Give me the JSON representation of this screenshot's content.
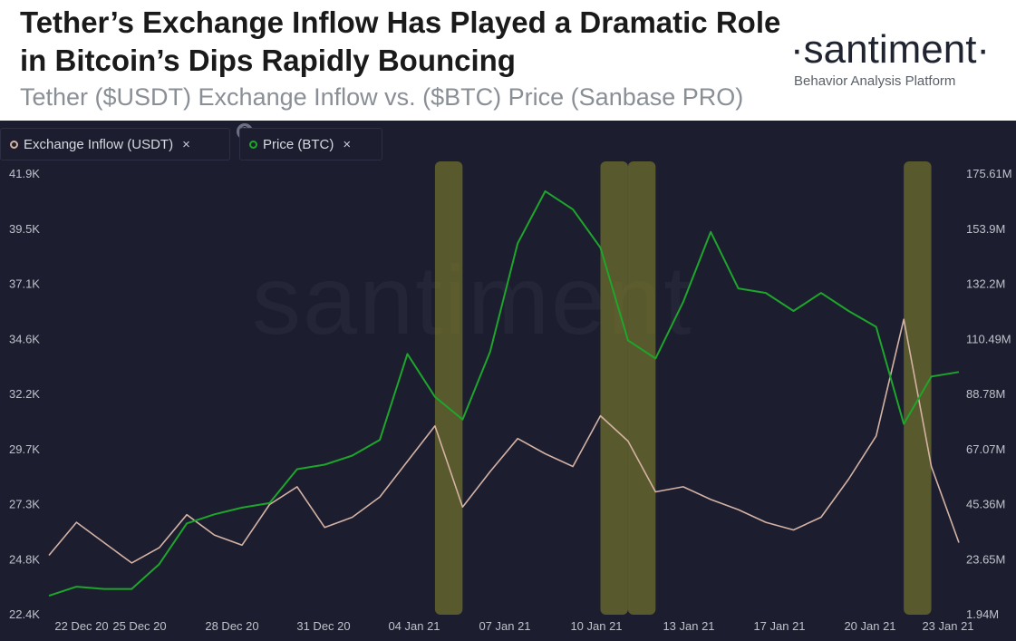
{
  "header": {
    "title": "Tether’s Exchange Inflow Has Played a Dramatic Role in Bitcoin’s Dips Rapidly Bouncing",
    "subtitle": "Tether ($USDT) Exchange Inflow vs. ($BTC) Price (Sanbase PRO)",
    "brand_name": "·santiment·",
    "brand_tagline": "Behavior Analysis Platform"
  },
  "legend": [
    {
      "label": "Exchange Inflow (USDT)",
      "close": "×",
      "color": "#d4b2a4"
    },
    {
      "label": "Price (BTC)",
      "close": "×",
      "color": "#1ea52b"
    }
  ],
  "watermark": "santiment",
  "colors": {
    "background": "#1c1e2f",
    "inflow": "#d4b2a4",
    "price": "#1ea52b",
    "highlight": "#8a8a2a",
    "axis_text": "#bfc2cc"
  },
  "chart_data": {
    "type": "line",
    "left_axis": {
      "series": "Price (BTC)",
      "ticks": [
        "41.9K",
        "39.5K",
        "37.1K",
        "34.6K",
        "32.2K",
        "29.7K",
        "27.3K",
        "24.8K",
        "22.4K"
      ],
      "range": [
        22400,
        41900
      ]
    },
    "right_axis": {
      "series": "Exchange Inflow (USDT)",
      "ticks": [
        "175.61M",
        "153.9M",
        "132.2M",
        "110.49M",
        "88.78M",
        "67.07M",
        "45.36M",
        "23.65M",
        "1.94M"
      ],
      "range": [
        1.94,
        175.61
      ]
    },
    "x_axis": {
      "ticks": [
        "22 Dec 20",
        "25 Dec 20",
        "28 Dec 20",
        "31 Dec 20",
        "04 Jan 21",
        "07 Jan 21",
        "10 Jan 21",
        "13 Jan 21",
        "17 Jan 21",
        "20 Jan 21",
        "23 Jan 21"
      ]
    },
    "highlight_bands": [
      {
        "start": "2021-01-04",
        "end": "2021-01-05"
      },
      {
        "start": "2021-01-10",
        "end": "2021-01-11"
      },
      {
        "start": "2021-01-11",
        "end": "2021-01-12"
      },
      {
        "start": "2021-01-21",
        "end": "2021-01-22"
      }
    ],
    "series": [
      {
        "name": "Price (BTC)",
        "axis": "left",
        "color": "#1ea52b",
        "points": [
          [
            "2020-12-21",
            23200
          ],
          [
            "2020-12-22",
            23600
          ],
          [
            "2020-12-23",
            23500
          ],
          [
            "2020-12-24",
            23500
          ],
          [
            "2020-12-25",
            24600
          ],
          [
            "2020-12-26",
            26400
          ],
          [
            "2020-12-27",
            26800
          ],
          [
            "2020-12-28",
            27100
          ],
          [
            "2020-12-29",
            27300
          ],
          [
            "2020-12-30",
            28800
          ],
          [
            "2020-12-31",
            29000
          ],
          [
            "2021-01-01",
            29400
          ],
          [
            "2021-01-02",
            30100
          ],
          [
            "2021-01-03",
            33900
          ],
          [
            "2021-01-04",
            32000
          ],
          [
            "2021-01-05",
            31000
          ],
          [
            "2021-01-06",
            34000
          ],
          [
            "2021-01-07",
            38800
          ],
          [
            "2021-01-08",
            41100
          ],
          [
            "2021-01-09",
            40300
          ],
          [
            "2021-01-10",
            38600
          ],
          [
            "2021-01-11",
            34500
          ],
          [
            "2021-01-12",
            33700
          ],
          [
            "2021-01-13",
            36200
          ],
          [
            "2021-01-14",
            39300
          ],
          [
            "2021-01-15",
            36800
          ],
          [
            "2021-01-16",
            36600
          ],
          [
            "2021-01-17",
            35800
          ],
          [
            "2021-01-18",
            36600
          ],
          [
            "2021-01-19",
            35800
          ],
          [
            "2021-01-20",
            35100
          ],
          [
            "2021-01-21",
            30800
          ],
          [
            "2021-01-22",
            32900
          ],
          [
            "2021-01-23",
            33100
          ]
        ]
      },
      {
        "name": "Exchange Inflow (USDT)",
        "axis": "right",
        "color": "#d4b2a4",
        "points": [
          [
            "2020-12-21",
            25
          ],
          [
            "2020-12-22",
            38
          ],
          [
            "2020-12-23",
            30
          ],
          [
            "2020-12-24",
            22
          ],
          [
            "2020-12-25",
            28
          ],
          [
            "2020-12-26",
            41
          ],
          [
            "2020-12-27",
            33
          ],
          [
            "2020-12-28",
            29
          ],
          [
            "2020-12-29",
            45
          ],
          [
            "2020-12-30",
            52
          ],
          [
            "2020-12-31",
            36
          ],
          [
            "2021-01-01",
            40
          ],
          [
            "2021-01-02",
            48
          ],
          [
            "2021-01-03",
            62
          ],
          [
            "2021-01-04",
            76
          ],
          [
            "2021-01-05",
            44
          ],
          [
            "2021-01-06",
            58
          ],
          [
            "2021-01-07",
            71
          ],
          [
            "2021-01-08",
            65
          ],
          [
            "2021-01-09",
            60
          ],
          [
            "2021-01-10",
            80
          ],
          [
            "2021-01-11",
            70
          ],
          [
            "2021-01-12",
            50
          ],
          [
            "2021-01-13",
            52
          ],
          [
            "2021-01-14",
            47
          ],
          [
            "2021-01-15",
            43
          ],
          [
            "2021-01-16",
            38
          ],
          [
            "2021-01-17",
            35
          ],
          [
            "2021-01-18",
            40
          ],
          [
            "2021-01-19",
            55
          ],
          [
            "2021-01-20",
            72
          ],
          [
            "2021-01-21",
            118
          ],
          [
            "2021-01-22",
            60
          ],
          [
            "2021-01-23",
            30
          ]
        ]
      }
    ]
  }
}
